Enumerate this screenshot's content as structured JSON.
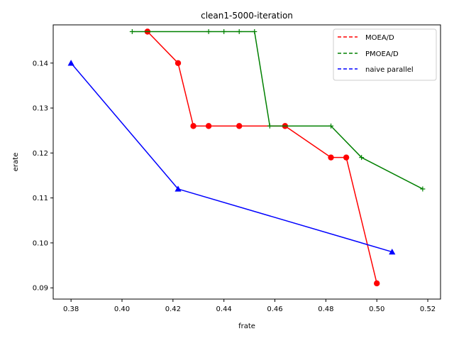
{
  "chart_data": {
    "type": "line",
    "title": "clean1-5000-iteration",
    "xlabel": "frate",
    "ylabel": "erate",
    "xlim": [
      0.373,
      0.525
    ],
    "ylim": [
      0.0875,
      0.1485
    ],
    "xticks": [
      0.38,
      0.4,
      0.42,
      0.44,
      0.46,
      0.48,
      0.5,
      0.52
    ],
    "xtick_labels": [
      "0.38",
      "0.40",
      "0.42",
      "0.44",
      "0.46",
      "0.48",
      "0.50",
      "0.52"
    ],
    "yticks": [
      0.09,
      0.1,
      0.11,
      0.12,
      0.13,
      0.14
    ],
    "ytick_labels": [
      "0.09",
      "0.10",
      "0.11",
      "0.12",
      "0.13",
      "0.14"
    ],
    "grid": false,
    "legend_position": "top-right",
    "series": [
      {
        "name": "MOEA/D",
        "color": "#ff0000",
        "marker": "circle",
        "x": [
          0.41,
          0.422,
          0.428,
          0.434,
          0.446,
          0.464,
          0.482,
          0.488,
          0.5
        ],
        "y": [
          0.147,
          0.14,
          0.126,
          0.126,
          0.126,
          0.126,
          0.119,
          0.119,
          0.091
        ]
      },
      {
        "name": "PMOEA/D",
        "color": "#008000",
        "marker": "plus",
        "x": [
          0.404,
          0.434,
          0.44,
          0.446,
          0.452,
          0.458,
          0.482,
          0.494,
          0.518
        ],
        "y": [
          0.147,
          0.147,
          0.147,
          0.147,
          0.147,
          0.126,
          0.126,
          0.119,
          0.112
        ]
      },
      {
        "name": "naive parallel",
        "color": "#0000ff",
        "marker": "triangle",
        "x": [
          0.38,
          0.422,
          0.506
        ],
        "y": [
          0.14,
          0.112,
          0.098
        ]
      }
    ]
  }
}
